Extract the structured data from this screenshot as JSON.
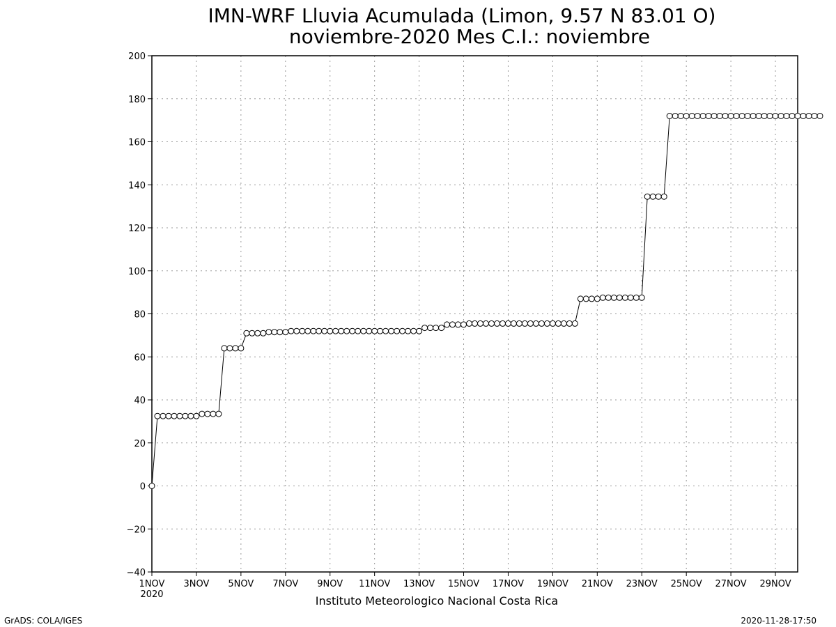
{
  "title_line1": "IMN-WRF  Lluvia Acumulada (Limon, 9.57  N 83.01  O)",
  "title_line2": "noviembre-2020 Mes C.I.: noviembre",
  "credit": "Instituto Meteorologico Nacional Costa Rica",
  "footer_left": "GrADS: COLA/IGES",
  "footer_right": "2020-11-28-17:50",
  "x_year_label": "2020",
  "chart_data": {
    "type": "line",
    "title": "IMN-WRF  Lluvia Acumulada (Limon, 9.57  N 83.01  O) noviembre-2020 Mes C.I.: noviembre",
    "xlabel": "",
    "ylabel": "",
    "ylim": [
      -40,
      200
    ],
    "xlim_days": [
      1,
      30
    ],
    "grid": true,
    "marker": "open-circle",
    "y_ticks": [
      -40,
      -20,
      0,
      20,
      40,
      60,
      80,
      100,
      120,
      140,
      160,
      180,
      200
    ],
    "x_ticks": [
      {
        "day": 1,
        "label": "1NOV"
      },
      {
        "day": 3,
        "label": "3NOV"
      },
      {
        "day": 5,
        "label": "5NOV"
      },
      {
        "day": 7,
        "label": "7NOV"
      },
      {
        "day": 9,
        "label": "9NOV"
      },
      {
        "day": 11,
        "label": "11NOV"
      },
      {
        "day": 13,
        "label": "13NOV"
      },
      {
        "day": 15,
        "label": "15NOV"
      },
      {
        "day": 17,
        "label": "17NOV"
      },
      {
        "day": 19,
        "label": "19NOV"
      },
      {
        "day": 21,
        "label": "21NOV"
      },
      {
        "day": 23,
        "label": "23NOV"
      },
      {
        "day": 25,
        "label": "25NOV"
      },
      {
        "day": 27,
        "label": "27NOV"
      },
      {
        "day": 29,
        "label": "29NOV"
      }
    ],
    "time_step_days": 0.25,
    "series": [
      {
        "values": [
          0,
          32.5,
          32.5,
          32.5,
          32.5,
          32.5,
          32.5,
          32.5,
          32.5,
          33.5,
          33.5,
          33.5,
          33.5,
          64,
          64,
          64,
          64,
          71,
          71,
          71,
          71,
          71.5,
          71.5,
          71.5,
          71.5,
          72,
          72,
          72,
          72,
          72,
          72,
          72,
          72,
          72,
          72,
          72,
          72,
          72,
          72,
          72,
          72,
          72,
          72,
          72,
          72,
          72,
          72,
          72,
          72,
          73.5,
          73.5,
          73.5,
          73.5,
          75,
          75,
          75,
          75,
          75.5,
          75.5,
          75.5,
          75.5,
          75.5,
          75.5,
          75.5,
          75.5,
          75.5,
          75.5,
          75.5,
          75.5,
          75.5,
          75.5,
          75.5,
          75.5,
          75.5,
          75.5,
          75.5,
          75.5,
          87,
          87,
          87,
          87,
          87.5,
          87.5,
          87.5,
          87.5,
          87.5,
          87.5,
          87.5,
          87.5,
          134.5,
          134.5,
          134.5,
          134.5,
          172,
          172,
          172,
          172,
          172,
          172,
          172,
          172,
          172,
          172,
          172,
          172,
          172,
          172,
          172,
          172,
          172,
          172,
          172,
          172,
          172,
          172,
          172,
          172,
          172,
          172,
          172,
          172
        ]
      }
    ]
  }
}
